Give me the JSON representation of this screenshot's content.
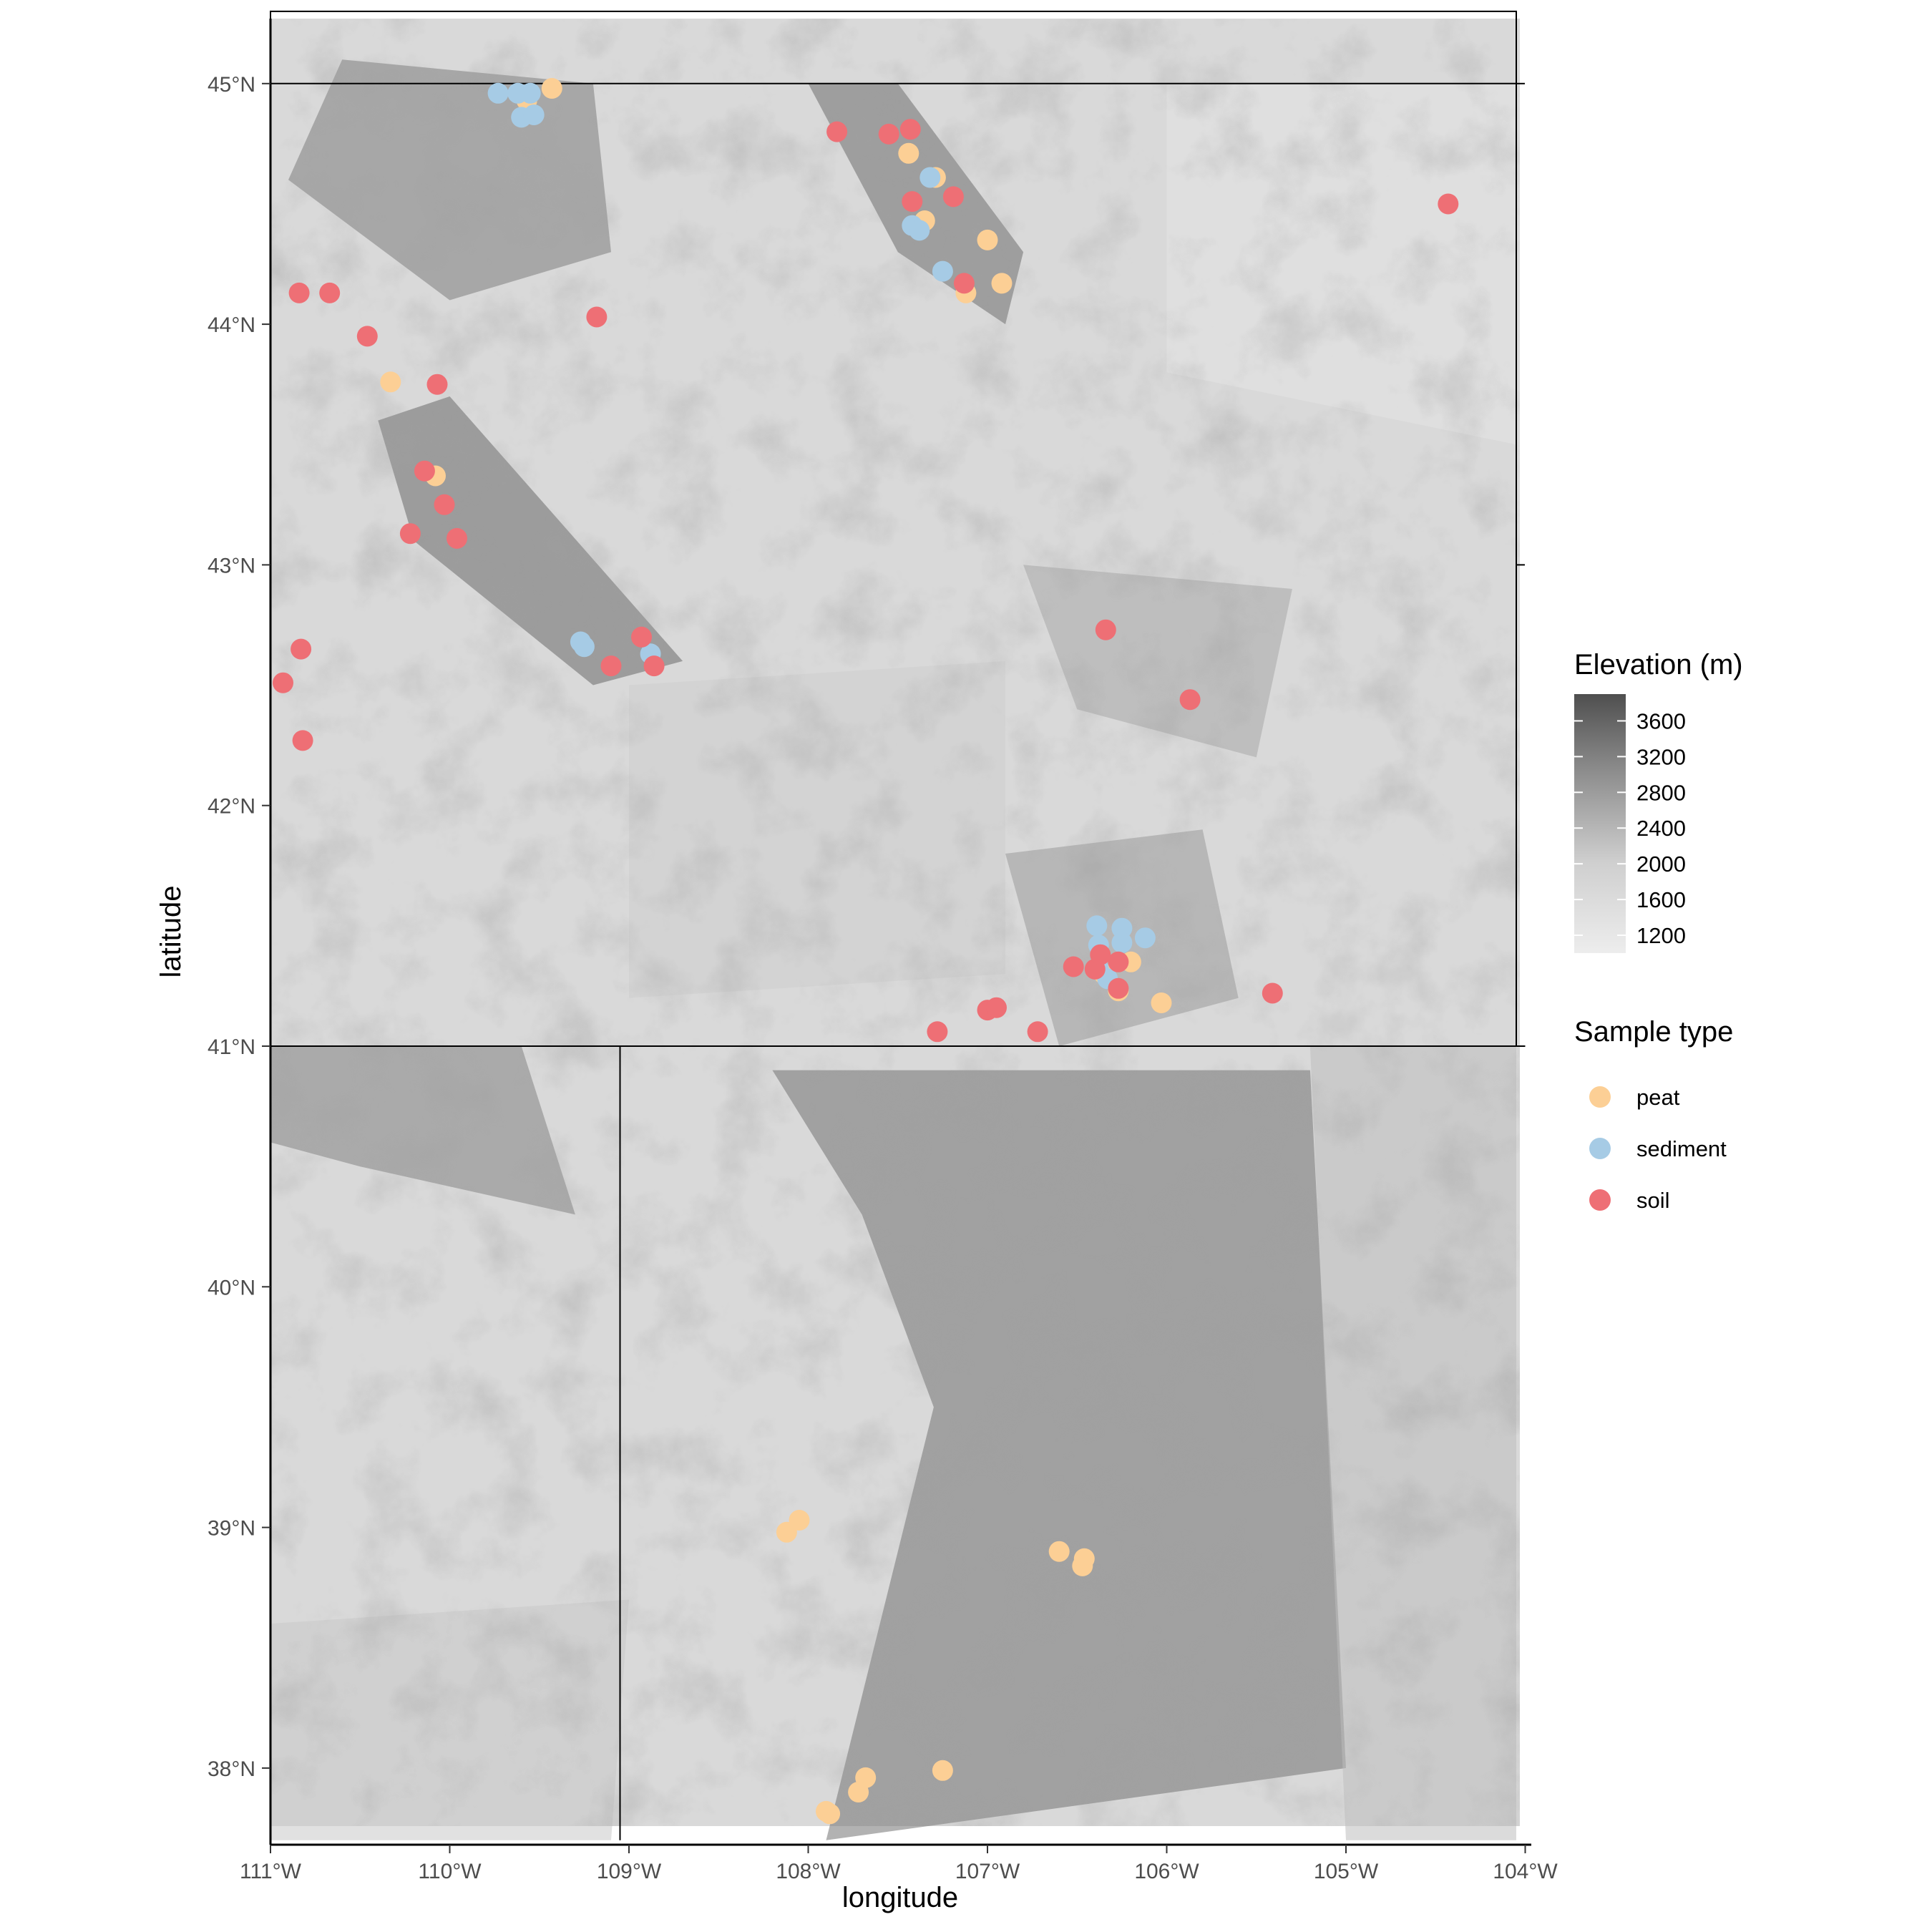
{
  "chart_data": {
    "type": "scatter",
    "map": "elevation raster with state boundaries",
    "xlabel": "longitude",
    "ylabel": "latitude",
    "xlim": [
      -111,
      -104
    ],
    "ylim": [
      37.7,
      45.3
    ],
    "x_ticks": [
      {
        "value": -111,
        "label": "111°W"
      },
      {
        "value": -110,
        "label": "110°W"
      },
      {
        "value": -109,
        "label": "109°W"
      },
      {
        "value": -108,
        "label": "108°W"
      },
      {
        "value": -107,
        "label": "107°W"
      },
      {
        "value": -106,
        "label": "106°W"
      },
      {
        "value": -105,
        "label": "105°W"
      },
      {
        "value": -104,
        "label": "104°W"
      }
    ],
    "y_ticks": [
      {
        "value": 38,
        "label": "38°N"
      },
      {
        "value": 39,
        "label": "39°N"
      },
      {
        "value": 40,
        "label": "40°N"
      },
      {
        "value": 41,
        "label": "41°N"
      },
      {
        "value": 42,
        "label": "42°N"
      },
      {
        "value": 43,
        "label": "43°N"
      },
      {
        "value": 44,
        "label": "44°N"
      },
      {
        "value": 45,
        "label": "45°N"
      }
    ],
    "elevation_legend": {
      "title": "Elevation (m)",
      "range": [
        1000,
        3900
      ],
      "breaks": [
        {
          "value": 3600,
          "label": "3600"
        },
        {
          "value": 3200,
          "label": "3200"
        },
        {
          "value": 2800,
          "label": "2800"
        },
        {
          "value": 2400,
          "label": "2400"
        },
        {
          "value": 2000,
          "label": "2000"
        },
        {
          "value": 1600,
          "label": "1600"
        },
        {
          "value": 1200,
          "label": "1200"
        }
      ],
      "low_color": "#ededed",
      "high_color": "#4f4f4f"
    },
    "sample_legend": {
      "title": "Sample type",
      "entries": [
        {
          "key": "peat",
          "label": "peat",
          "color": "#FCCF95"
        },
        {
          "key": "sediment",
          "label": "sediment",
          "color": "#A6CBE5"
        },
        {
          "key": "soil",
          "label": "soil",
          "color": "#EE6F75"
        }
      ]
    },
    "series": [
      {
        "name": "peat",
        "color": "#FCCF95",
        "points": [
          [
            -109.43,
            44.98
          ],
          [
            -109.57,
            44.93
          ],
          [
            -107.44,
            44.71
          ],
          [
            -107.29,
            44.61
          ],
          [
            -107.35,
            44.43
          ],
          [
            -107.0,
            44.35
          ],
          [
            -106.92,
            44.17
          ],
          [
            -107.12,
            44.13
          ],
          [
            -110.33,
            43.76
          ],
          [
            -110.08,
            43.37
          ],
          [
            -106.27,
            41.23
          ],
          [
            -106.03,
            41.18
          ],
          [
            -106.2,
            41.35
          ],
          [
            -106.35,
            41.3
          ],
          [
            -108.12,
            38.98
          ],
          [
            -108.05,
            39.03
          ],
          [
            -106.6,
            38.9
          ],
          [
            -106.47,
            38.84
          ],
          [
            -106.46,
            38.87
          ],
          [
            -107.25,
            37.99
          ],
          [
            -107.68,
            37.96
          ],
          [
            -107.72,
            37.9
          ],
          [
            -107.88,
            37.81
          ],
          [
            -107.9,
            37.82
          ]
        ]
      },
      {
        "name": "sediment",
        "color": "#A6CBE5",
        "points": [
          [
            -109.73,
            44.96
          ],
          [
            -109.62,
            44.96
          ],
          [
            -109.55,
            44.96
          ],
          [
            -109.6,
            44.86
          ],
          [
            -109.53,
            44.87
          ],
          [
            -107.32,
            44.61
          ],
          [
            -107.42,
            44.41
          ],
          [
            -107.38,
            44.39
          ],
          [
            -107.25,
            44.22
          ],
          [
            -109.27,
            42.68
          ],
          [
            -109.25,
            42.66
          ],
          [
            -108.88,
            42.63
          ],
          [
            -106.39,
            41.5
          ],
          [
            -106.25,
            41.49
          ],
          [
            -106.12,
            41.45
          ],
          [
            -106.38,
            41.42
          ],
          [
            -106.25,
            41.43
          ],
          [
            -106.38,
            41.32
          ],
          [
            -106.33,
            41.28
          ]
        ]
      },
      {
        "name": "soil",
        "color": "#EE6F75",
        "points": [
          [
            -107.84,
            44.8
          ],
          [
            -107.55,
            44.79
          ],
          [
            -107.43,
            44.81
          ],
          [
            -107.42,
            44.51
          ],
          [
            -107.19,
            44.53
          ],
          [
            -107.13,
            44.17
          ],
          [
            -104.43,
            44.5
          ],
          [
            -110.84,
            44.13
          ],
          [
            -110.67,
            44.13
          ],
          [
            -110.46,
            43.95
          ],
          [
            -109.18,
            44.03
          ],
          [
            -110.07,
            43.75
          ],
          [
            -110.14,
            43.39
          ],
          [
            -110.03,
            43.25
          ],
          [
            -110.22,
            43.13
          ],
          [
            -109.96,
            43.11
          ],
          [
            -108.93,
            42.7
          ],
          [
            -109.1,
            42.58
          ],
          [
            -108.86,
            42.58
          ],
          [
            -110.83,
            42.65
          ],
          [
            -110.93,
            42.51
          ],
          [
            -110.82,
            42.27
          ],
          [
            -106.34,
            42.73
          ],
          [
            -105.87,
            42.44
          ],
          [
            -106.52,
            41.33
          ],
          [
            -106.4,
            41.32
          ],
          [
            -106.37,
            41.38
          ],
          [
            -106.27,
            41.35
          ],
          [
            -106.27,
            41.24
          ],
          [
            -105.41,
            41.22
          ],
          [
            -107.0,
            41.15
          ],
          [
            -106.95,
            41.16
          ],
          [
            -107.28,
            41.06
          ],
          [
            -106.72,
            41.06
          ]
        ]
      }
    ],
    "boundaries": {
      "wyoming": [
        [
          -111.0,
          41.0
        ],
        [
          -111.0,
          45.3
        ],
        [
          -104.05,
          45.3
        ],
        [
          -104.05,
          41.0
        ]
      ],
      "wy_north": [
        [
          -111.0,
          45.0
        ],
        [
          -104.05,
          45.0
        ]
      ],
      "co_north": [
        [
          -111.0,
          41.0
        ],
        [
          -104.0,
          41.0
        ]
      ],
      "ut_co": [
        [
          -109.05,
          41.0
        ],
        [
          -109.05,
          37.7
        ]
      ]
    }
  }
}
